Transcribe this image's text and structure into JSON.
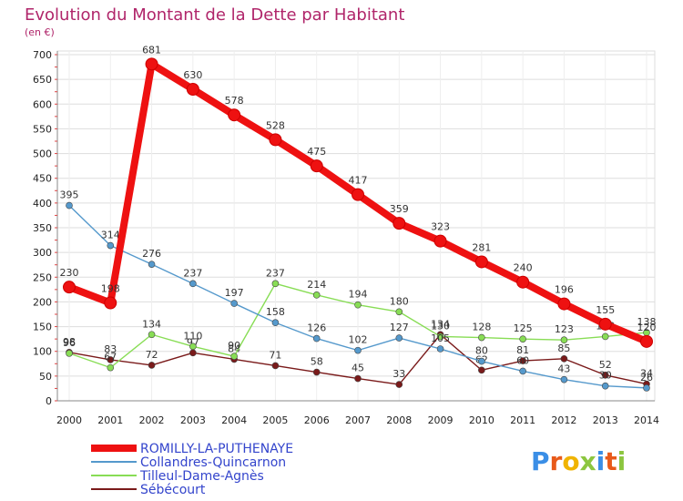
{
  "chart_data": {
    "type": "line",
    "title": "Evolution du Montant de la Dette par Habitant",
    "subtitle": "(en €)",
    "x": [
      "2000",
      "2001",
      "2002",
      "2003",
      "2004",
      "2005",
      "2006",
      "2007",
      "2008",
      "2009",
      "2010",
      "2011",
      "2012",
      "2013",
      "2014"
    ],
    "ylim": [
      0,
      700
    ],
    "yticks": [
      0,
      50,
      100,
      150,
      200,
      250,
      300,
      350,
      400,
      450,
      500,
      550,
      600,
      650,
      700
    ],
    "grid": true,
    "legend_position": "bottom-left",
    "series": [
      {
        "name": "Sébécourt",
        "color": "#7a1a1a",
        "values": [
          98,
          83,
          72,
          97,
          84,
          71,
          58,
          45,
          33,
          134,
          62,
          81,
          85,
          52,
          34
        ]
      },
      {
        "name": "Tilleul-Dame-Agnès",
        "color": "#88dd55",
        "values": [
          96,
          67,
          134,
          110,
          90,
          237,
          214,
          194,
          180,
          130,
          128,
          125,
          123,
          130,
          138
        ]
      },
      {
        "name": "Collandres-Quincarnon",
        "color": "#5599cc",
        "values": [
          395,
          314,
          276,
          237,
          197,
          158,
          126,
          102,
          127,
          105,
          80,
          60,
          43,
          30,
          26
        ]
      },
      {
        "name": "ROMILLY-LA-PUTHENAYE",
        "color": "#ee1111",
        "values": [
          230,
          198,
          681,
          630,
          578,
          528,
          475,
          417,
          359,
          323,
          281,
          240,
          196,
          155,
          120
        ]
      }
    ]
  },
  "legend": {
    "items": [
      {
        "label": "ROMILLY-LA-PUTHENAYE",
        "color": "#ee1111",
        "label_color": "#3344cc"
      },
      {
        "label": "Collandres-Quincarnon",
        "color": "#5599cc",
        "label_color": "#3344cc"
      },
      {
        "label": "Tilleul-Dame-Agnès",
        "color": "#88dd55",
        "label_color": "#3344cc"
      },
      {
        "label": "Sébécourt",
        "color": "#7a1a1a",
        "label_color": "#3344cc"
      }
    ]
  },
  "logo": {
    "letters": [
      "P",
      "r",
      "o",
      "x",
      "i",
      "t",
      "i"
    ],
    "colors": [
      "#3a8ee6",
      "#e85a1a",
      "#f0b400",
      "#8cc63f",
      "#3a8ee6",
      "#e85a1a",
      "#8cc63f"
    ]
  }
}
